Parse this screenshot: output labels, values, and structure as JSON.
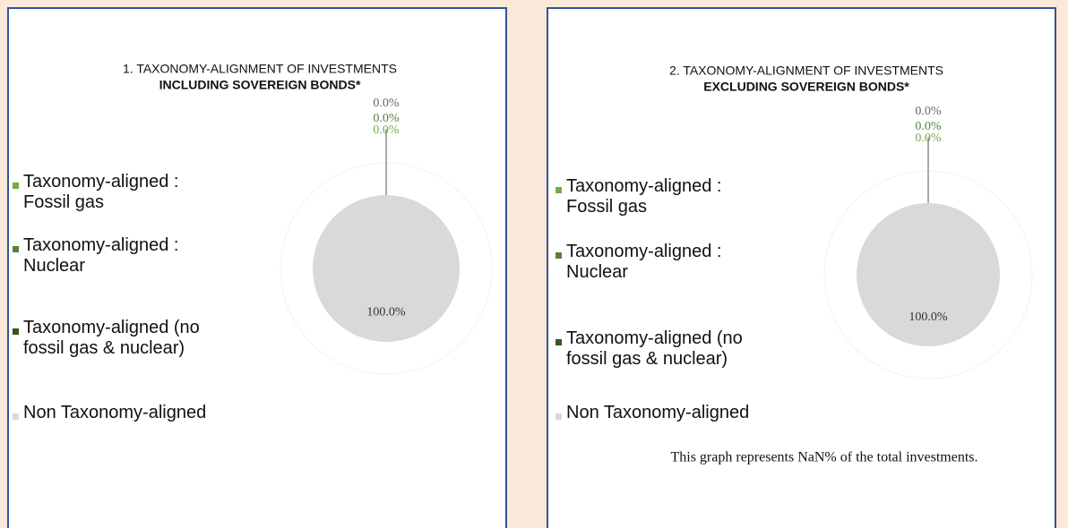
{
  "chart_data": [
    {
      "type": "pie",
      "title": "1. TAXONOMY-ALIGNMENT OF INVESTMENTS",
      "subtitle": "INCLUDING SOVEREIGN BONDS*",
      "categories": [
        "Taxonomy-aligned : Fossil gas",
        "Taxonomy-aligned : Nuclear",
        "Taxonomy-aligned (no fossil gas & nuclear)",
        "Non Taxonomy-aligned"
      ],
      "values": [
        0.0,
        0.0,
        0.0,
        100.0
      ],
      "value_labels": [
        "0.0%",
        "0.0%",
        "0.0%",
        "100.0%"
      ],
      "colors": [
        "#70ad47",
        "#548235",
        "#375623",
        "#d9d9d9"
      ]
    },
    {
      "type": "pie",
      "title": "2. TAXONOMY-ALIGNMENT OF INVESTMENTS",
      "subtitle": "EXCLUDING SOVEREIGN BONDS*",
      "categories": [
        "Taxonomy-aligned : Fossil gas",
        "Taxonomy-aligned : Nuclear",
        "Taxonomy-aligned (no fossil gas & nuclear)",
        "Non Taxonomy-aligned"
      ],
      "values": [
        0.0,
        0.0,
        0.0,
        100.0
      ],
      "value_labels": [
        "0.0%",
        "0.0%",
        "0.0%",
        "100.0%"
      ],
      "colors": [
        "#70ad47",
        "#548235",
        "#375623",
        "#d9d9d9"
      ],
      "annotation": "This graph represents NaN% of the total investments."
    }
  ]
}
